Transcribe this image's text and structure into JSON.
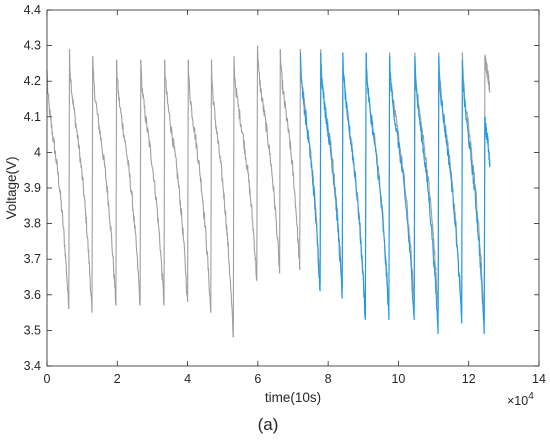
{
  "chart_data": {
    "type": "line",
    "xlabel": "time(10s)",
    "ylabel": "Voltage(V)",
    "x_exponent_label": "×10",
    "x_exponent_power": "4",
    "panel_label": "(a)",
    "xlim": [
      0,
      14
    ],
    "ylim": [
      3.4,
      4.4
    ],
    "xticks": [
      "0",
      "2",
      "4",
      "6",
      "8",
      "10",
      "12",
      "14"
    ],
    "yticks": [
      "3.4",
      "3.5",
      "3.6",
      "3.7",
      "3.8",
      "3.9",
      "4",
      "4.1",
      "4.2",
      "4.3",
      "4.4"
    ],
    "grid": false,
    "series": [
      {
        "color": "#9e9e9e",
        "cycles": [
          {
            "x0": 0.0,
            "peak": 4.23,
            "x1": 0.62,
            "min": 3.56
          },
          {
            "x0": 0.64,
            "peak": 4.29,
            "x1": 1.28,
            "min": 3.55
          },
          {
            "x0": 1.3,
            "peak": 4.27,
            "x1": 1.96,
            "min": 3.57
          },
          {
            "x0": 1.98,
            "peak": 4.26,
            "x1": 2.65,
            "min": 3.57
          },
          {
            "x0": 2.67,
            "peak": 4.26,
            "x1": 3.33,
            "min": 3.57
          },
          {
            "x0": 3.35,
            "peak": 4.26,
            "x1": 4.0,
            "min": 3.58
          },
          {
            "x0": 4.02,
            "peak": 4.26,
            "x1": 4.66,
            "min": 3.55
          },
          {
            "x0": 4.68,
            "peak": 4.26,
            "x1": 5.3,
            "min": 3.48
          },
          {
            "x0": 5.32,
            "peak": 4.27,
            "x1": 5.97,
            "min": 3.64
          },
          {
            "x0": 5.99,
            "peak": 4.3,
            "x1": 6.62,
            "min": 3.66
          },
          {
            "x0": 6.64,
            "peak": 4.29,
            "x1": 7.19,
            "min": 3.67
          },
          {
            "x0": 7.21,
            "peak": 4.29,
            "x1": 7.77,
            "min": 3.63
          },
          {
            "x0": 7.79,
            "peak": 4.29,
            "x1": 8.4,
            "min": 3.62
          },
          {
            "x0": 8.42,
            "peak": 4.28,
            "x1": 9.06,
            "min": 3.55
          },
          {
            "x0": 9.08,
            "peak": 4.28,
            "x1": 9.73,
            "min": 3.56
          },
          {
            "x0": 9.75,
            "peak": 4.28,
            "x1": 10.45,
            "min": 3.57
          },
          {
            "x0": 10.47,
            "peak": 4.28,
            "x1": 11.13,
            "min": 3.55
          },
          {
            "x0": 11.15,
            "peak": 4.28,
            "x1": 11.8,
            "min": 3.54
          },
          {
            "x0": 11.82,
            "peak": 4.28,
            "x1": 12.44,
            "min": 3.53
          },
          {
            "x0": 12.46,
            "peak": 4.27,
            "x1": 12.6,
            "min": 4.17
          }
        ]
      },
      {
        "color": "#1e9be6",
        "cycles": [
          {
            "x0": 7.21,
            "peak": 4.28,
            "x1": 7.77,
            "min": 3.61
          },
          {
            "x0": 7.79,
            "peak": 4.28,
            "x1": 8.4,
            "min": 3.59
          },
          {
            "x0": 8.42,
            "peak": 4.28,
            "x1": 9.06,
            "min": 3.53
          },
          {
            "x0": 9.08,
            "peak": 4.28,
            "x1": 9.73,
            "min": 3.53
          },
          {
            "x0": 9.75,
            "peak": 4.27,
            "x1": 10.45,
            "min": 3.53
          },
          {
            "x0": 10.47,
            "peak": 4.27,
            "x1": 11.13,
            "min": 3.49
          },
          {
            "x0": 11.15,
            "peak": 4.27,
            "x1": 11.8,
            "min": 3.52
          },
          {
            "x0": 11.82,
            "peak": 4.26,
            "x1": 12.44,
            "min": 3.49
          },
          {
            "x0": 12.46,
            "peak": 4.1,
            "x1": 12.6,
            "min": 3.96
          }
        ]
      }
    ]
  }
}
